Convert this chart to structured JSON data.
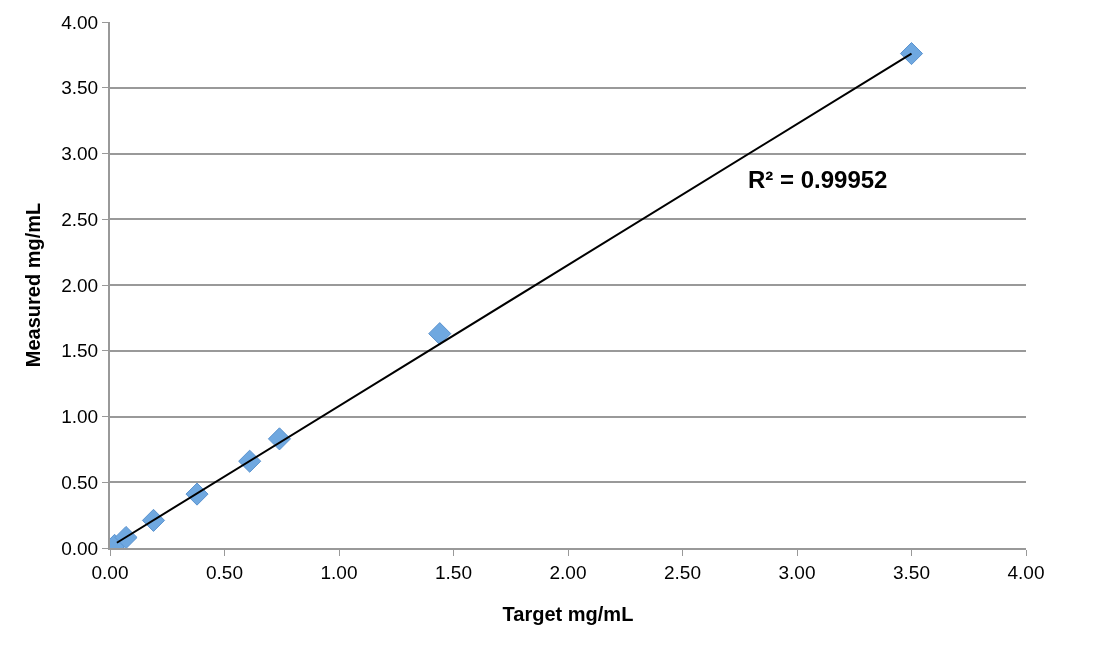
{
  "chart_data": {
    "type": "scatter",
    "xlabel": "Target mg/mL",
    "ylabel": "Measured mg/mL",
    "xlim": [
      0,
      4
    ],
    "ylim": [
      0,
      4
    ],
    "xticks": [
      {
        "value": 0,
        "label": "0.00"
      },
      {
        "value": 0.5,
        "label": "0.50"
      },
      {
        "value": 1,
        "label": "1.00"
      },
      {
        "value": 1.5,
        "label": "1.50"
      },
      {
        "value": 2,
        "label": "2.00"
      },
      {
        "value": 2.5,
        "label": "2.50"
      },
      {
        "value": 3,
        "label": "3.00"
      },
      {
        "value": 3.5,
        "label": "3.50"
      },
      {
        "value": 4,
        "label": "4.00"
      }
    ],
    "yticks": [
      {
        "value": 0,
        "label": "0.00"
      },
      {
        "value": 0.5,
        "label": "0.50"
      },
      {
        "value": 1,
        "label": "1.00"
      },
      {
        "value": 1.5,
        "label": "1.50"
      },
      {
        "value": 2,
        "label": "2.00"
      },
      {
        "value": 2.5,
        "label": "2.50"
      },
      {
        "value": 3,
        "label": "3.00"
      },
      {
        "value": 3.5,
        "label": "3.50"
      },
      {
        "value": 4,
        "label": "4.00"
      }
    ],
    "grid": "y",
    "marker": "diamond",
    "annotations": [
      "R² = 0.99952"
    ],
    "series": [
      {
        "color": "#6fa8e0",
        "x": [
          0.02,
          0.07,
          0.19,
          0.38,
          0.61,
          0.74,
          1.44,
          3.5
        ],
        "values": [
          0.02,
          0.08,
          0.21,
          0.41,
          0.66,
          0.83,
          1.63,
          3.76
        ]
      },
      {
        "type": "line",
        "color": "#000000",
        "marker": "none",
        "x": [
          0.03,
          3.5
        ],
        "values": [
          0.04,
          3.76
        ]
      }
    ]
  }
}
